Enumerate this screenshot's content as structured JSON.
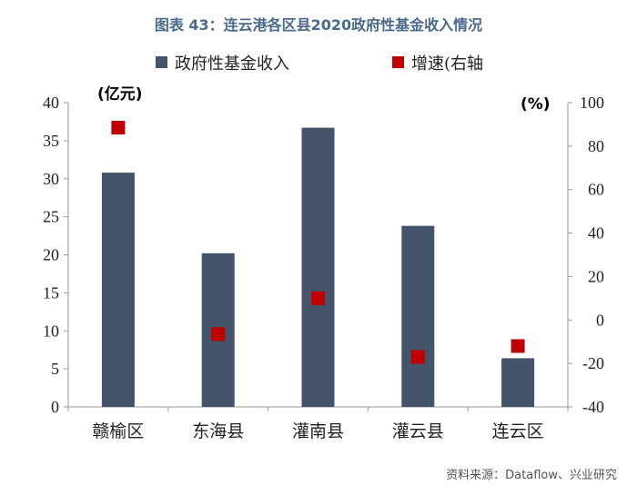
{
  "title": "图表 43：连云港各区县2020政府性基金收入情况",
  "source": "资料来源：Dataflow、兴业研究",
  "colors": {
    "bar": "#44546a",
    "marker": "#c00000",
    "axis": "#9a9a9a",
    "title": "#4a6a8c"
  },
  "chart_data": {
    "type": "bar",
    "categories": [
      "赣榆区",
      "东海县",
      "灌南县",
      "灌云县",
      "连云区"
    ],
    "series": [
      {
        "name": "政府性基金收入",
        "type": "bar",
        "axis": "left",
        "values": [
          30.8,
          20.2,
          36.7,
          23.8,
          6.4
        ]
      },
      {
        "name": "增速(右轴",
        "type": "scatter",
        "axis": "right",
        "values": [
          88.5,
          -6.5,
          10.0,
          -17.0,
          -12.0
        ]
      }
    ],
    "left_axis": {
      "unit_label": "(亿元)",
      "min": 0,
      "max": 40,
      "ticks": [
        0,
        5,
        10,
        15,
        20,
        25,
        30,
        35,
        40
      ]
    },
    "right_axis": {
      "unit_label": "(%)",
      "min": -40,
      "max": 100,
      "ticks": [
        -40,
        -20,
        0,
        20,
        40,
        60,
        80,
        100
      ]
    },
    "legend_position": "top",
    "grid": false
  }
}
